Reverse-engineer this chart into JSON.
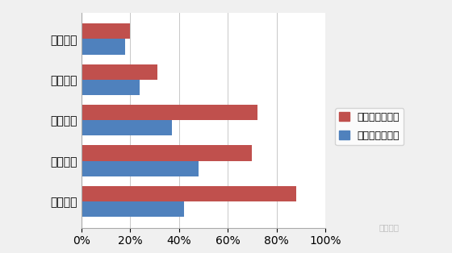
{
  "categories": [
    "建筑工程",
    "公路工程",
    "机电工程",
    "市政工程",
    "水利工程"
  ],
  "series": [
    {
      "name": "二级建造师涨幅",
      "color": "#c0504d",
      "values": [
        0.2,
        0.31,
        0.72,
        0.7,
        0.88
      ]
    },
    {
      "name": "一级建造师涨幅",
      "color": "#4f81bd",
      "values": [
        0.18,
        0.24,
        0.37,
        0.48,
        0.42
      ]
    }
  ],
  "xlim": [
    0,
    1.0
  ],
  "xticks": [
    0,
    0.2,
    0.4,
    0.6,
    0.8,
    1.0
  ],
  "outer_bg": "#f0f0f0",
  "plot_bg_color": "#ffffff",
  "grid_color": "#c8c8c8",
  "bar_height": 0.38,
  "fontsize": 10,
  "legend_fontsize": 9,
  "watermark": "筑龙施工"
}
